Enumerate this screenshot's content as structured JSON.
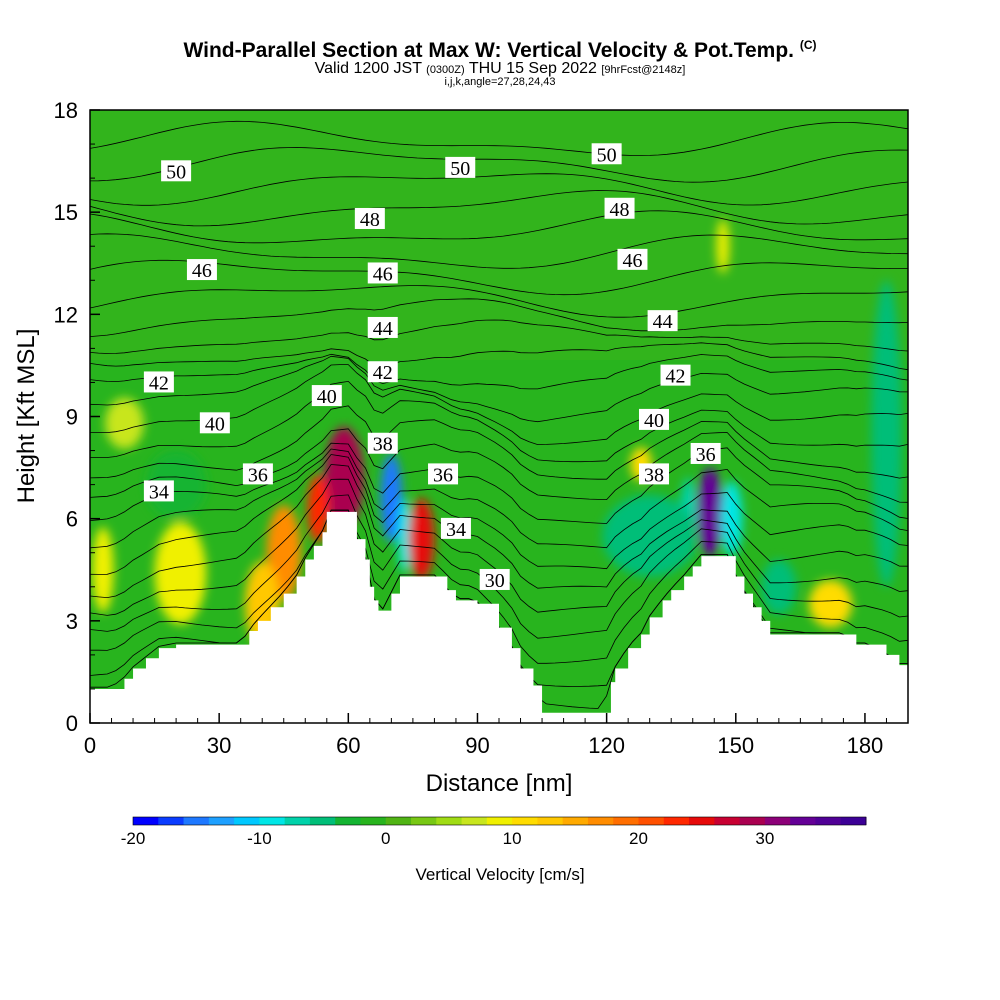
{
  "header": {
    "title": "Wind-Parallel Section at Max W: Vertical Velocity & Pot.Temp.",
    "title_suffix": "(C)",
    "valid_prefix": "Valid 1200 JST",
    "valid_utc": "(0300Z)",
    "valid_date": "THU 15 Sep 2022",
    "forecast": "[9hrFcst@2148z]",
    "indices": "i,j,k,angle=27,28,24,43"
  },
  "chart_data": {
    "type": "heatmap",
    "xlabel": "Distance [nm]",
    "ylabel": "Height [Kft MSL]",
    "xlim": [
      0,
      190
    ],
    "ylim": [
      0,
      18
    ],
    "xticks": [
      0,
      30,
      60,
      90,
      120,
      150,
      180
    ],
    "yticks": [
      0,
      3,
      6,
      9,
      12,
      15,
      18
    ],
    "colorbar": {
      "title": "Vertical Velocity [cm/s]",
      "min": -20,
      "max": 38,
      "step": 2,
      "tick_values": [
        -20,
        -10,
        0,
        10,
        20,
        30
      ],
      "tick_labels": [
        "-20",
        "-10",
        "0",
        "10",
        "20",
        "30"
      ],
      "colors": [
        "#0000ff",
        "#0a3cff",
        "#1e78ff",
        "#1ea0ff",
        "#00c8ff",
        "#00e6e6",
        "#00d2aa",
        "#00be78",
        "#14b432",
        "#28b41e",
        "#50b414",
        "#78c814",
        "#a0dc14",
        "#c8e61e",
        "#f0f000",
        "#ffdc00",
        "#ffc800",
        "#ffaa00",
        "#ff8c00",
        "#ff6e00",
        "#ff5000",
        "#ff2800",
        "#e60a0a",
        "#c80032",
        "#aa0050",
        "#8c0078",
        "#640096",
        "#500096",
        "#3c0096"
      ]
    },
    "terrain_profile": {
      "x": [
        0,
        5,
        8,
        10,
        13,
        16,
        20,
        30,
        35,
        37,
        39,
        42,
        45,
        48,
        50,
        52,
        54,
        55,
        57,
        60,
        62,
        64,
        65,
        66,
        67,
        69,
        70,
        72,
        75,
        77,
        80,
        83,
        85,
        88,
        90,
        95,
        98,
        100,
        103,
        105,
        110,
        115,
        119,
        121,
        122,
        125,
        128,
        130,
        133,
        135,
        138,
        140,
        142,
        145,
        148,
        150,
        152,
        154,
        156,
        158,
        160,
        165,
        170,
        175,
        178,
        180,
        185,
        188,
        190
      ],
      "height_kft": [
        1.0,
        1.0,
        1.3,
        1.6,
        1.9,
        2.2,
        2.3,
        2.3,
        2.3,
        2.7,
        3.0,
        3.4,
        3.8,
        4.3,
        4.8,
        5.2,
        5.6,
        6.2,
        6.2,
        6.2,
        5.4,
        4.8,
        4.0,
        3.6,
        3.3,
        3.3,
        3.8,
        4.3,
        4.3,
        4.3,
        4.3,
        3.9,
        3.6,
        3.6,
        3.5,
        2.8,
        2.2,
        1.6,
        1.1,
        0.3,
        0.3,
        0.3,
        0.3,
        1.2,
        1.6,
        2.2,
        2.6,
        3.1,
        3.6,
        3.9,
        4.3,
        4.6,
        4.9,
        4.9,
        4.9,
        4.3,
        3.8,
        3.4,
        3.0,
        2.6,
        2.6,
        2.6,
        2.6,
        2.6,
        2.3,
        2.3,
        2.0,
        1.7,
        1.7
      ]
    },
    "theta_contour_labels": [
      {
        "text": "50",
        "x": 20,
        "y": 16.2
      },
      {
        "text": "50",
        "x": 86,
        "y": 16.3
      },
      {
        "text": "50",
        "x": 120,
        "y": 16.7
      },
      {
        "text": "48",
        "x": 65,
        "y": 14.8
      },
      {
        "text": "48",
        "x": 123,
        "y": 15.1
      },
      {
        "text": "46",
        "x": 26,
        "y": 13.3
      },
      {
        "text": "46",
        "x": 68,
        "y": 13.2
      },
      {
        "text": "46",
        "x": 126,
        "y": 13.6
      },
      {
        "text": "44",
        "x": 68,
        "y": 11.6
      },
      {
        "text": "44",
        "x": 133,
        "y": 11.8
      },
      {
        "text": "42",
        "x": 16,
        "y": 10.0
      },
      {
        "text": "42",
        "x": 68,
        "y": 10.3
      },
      {
        "text": "42",
        "x": 136,
        "y": 10.2
      },
      {
        "text": "40",
        "x": 29,
        "y": 8.8
      },
      {
        "text": "40",
        "x": 55,
        "y": 9.6
      },
      {
        "text": "40",
        "x": 131,
        "y": 8.9
      },
      {
        "text": "38",
        "x": 68,
        "y": 8.2
      },
      {
        "text": "38",
        "x": 131,
        "y": 7.3
      },
      {
        "text": "36",
        "x": 39,
        "y": 7.3
      },
      {
        "text": "36",
        "x": 82,
        "y": 7.3
      },
      {
        "text": "36",
        "x": 143,
        "y": 7.9
      },
      {
        "text": "34",
        "x": 16,
        "y": 6.8
      },
      {
        "text": "34",
        "x": 85,
        "y": 5.7
      },
      {
        "text": "30",
        "x": 94,
        "y": 4.2
      }
    ],
    "vertical_velocity_cells": [
      {
        "x": 59,
        "y": 7.2,
        "w": 9,
        "h": 3.0,
        "v": 28
      },
      {
        "x": 45,
        "y": 5.0,
        "w": 8,
        "h": 2.8,
        "v": 16
      },
      {
        "x": 53,
        "y": 6.3,
        "w": 5,
        "h": 2.0,
        "v": 22
      },
      {
        "x": 70,
        "y": 6.6,
        "w": 5,
        "h": 2.6,
        "v": -16
      },
      {
        "x": 73,
        "y": 5.5,
        "w": 3,
        "h": 2.2,
        "v": -10
      },
      {
        "x": 77,
        "y": 5.4,
        "w": 6,
        "h": 2.4,
        "v": 24
      },
      {
        "x": 144,
        "y": 6.2,
        "w": 6,
        "h": 2.6,
        "v": 32
      },
      {
        "x": 139,
        "y": 6.0,
        "w": 4,
        "h": 2.4,
        "v": -8
      },
      {
        "x": 149,
        "y": 6.0,
        "w": 5,
        "h": 2.2,
        "v": -10
      },
      {
        "x": 130,
        "y": 5.5,
        "w": 22,
        "h": 2.4,
        "v": -6
      },
      {
        "x": 21,
        "y": 4.4,
        "w": 12,
        "h": 3.0,
        "v": 8
      },
      {
        "x": 20,
        "y": 7.0,
        "w": 14,
        "h": 2.0,
        "v": -4
      },
      {
        "x": 40,
        "y": 3.5,
        "w": 8,
        "h": 2.5,
        "v": 12
      },
      {
        "x": 185,
        "y": 8.5,
        "w": 7,
        "h": 9.0,
        "v": -5
      },
      {
        "x": 172,
        "y": 3.5,
        "w": 10,
        "h": 1.4,
        "v": 10
      },
      {
        "x": 160,
        "y": 4.0,
        "w": 8,
        "h": 1.6,
        "v": -6
      },
      {
        "x": 3,
        "y": 4.5,
        "w": 5,
        "h": 2.5,
        "v": 8
      },
      {
        "x": 8,
        "y": 8.8,
        "w": 9,
        "h": 1.5,
        "v": 6
      },
      {
        "x": 128,
        "y": 7.6,
        "w": 5,
        "h": 1.0,
        "v": 10
      },
      {
        "x": 147,
        "y": 14.0,
        "w": 3,
        "h": 1.6,
        "v": 8
      }
    ]
  }
}
